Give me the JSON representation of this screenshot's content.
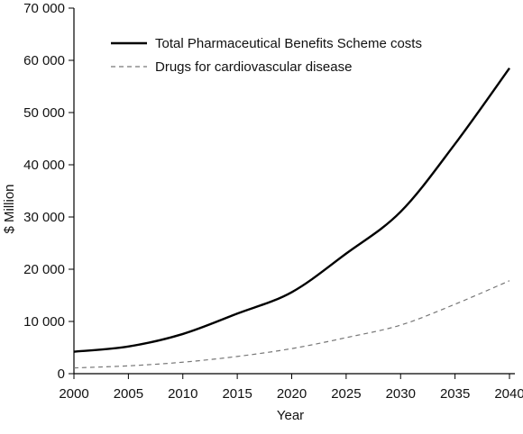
{
  "chart_data": {
    "type": "line",
    "title": "",
    "xlabel": "Year",
    "ylabel": "$ Million",
    "xlim": [
      2000,
      2040
    ],
    "ylim": [
      0,
      70000
    ],
    "x_ticks": [
      2000,
      2005,
      2010,
      2015,
      2020,
      2025,
      2030,
      2035,
      2040
    ],
    "x_tick_labels": [
      "2000",
      "2005",
      "2010",
      "2015",
      "2020",
      "2025",
      "2030",
      "2035",
      "2040"
    ],
    "y_ticks": [
      0,
      10000,
      20000,
      30000,
      40000,
      50000,
      60000,
      70000
    ],
    "y_tick_labels": [
      "0",
      "10 000",
      "20 000",
      "30 000",
      "40 000",
      "50 000",
      "60 000",
      "70 000"
    ],
    "grid": false,
    "legend_position": "top-left",
    "series": [
      {
        "name": "Total Pharmaceutical Benefits Scheme costs",
        "style": "solid",
        "color": "#000000",
        "x": [
          2000,
          2005,
          2010,
          2015,
          2020,
          2025,
          2030,
          2035,
          2040
        ],
        "y": [
          4200,
          5200,
          7600,
          11500,
          15600,
          23000,
          31000,
          44000,
          58500
        ]
      },
      {
        "name": "Drugs for cardiovascular disease",
        "style": "dashed",
        "color": "#777777",
        "x": [
          2000,
          2005,
          2010,
          2015,
          2020,
          2025,
          2030,
          2035,
          2040
        ],
        "y": [
          1100,
          1500,
          2200,
          3300,
          4800,
          6900,
          9300,
          13300,
          17800
        ]
      }
    ]
  }
}
